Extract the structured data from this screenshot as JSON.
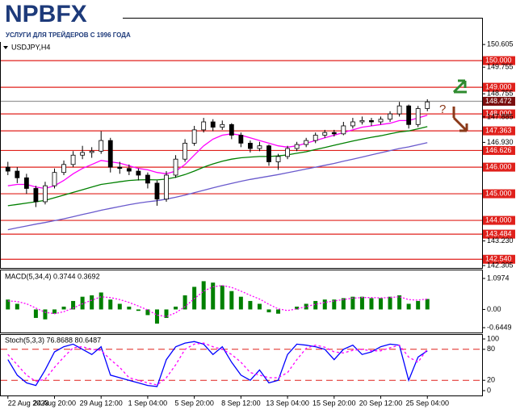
{
  "logo": {
    "name": "NPBFX",
    "tagline": "УСЛУГИ ДЛЯ ТРЕЙДЕРОВ С 1996 ГОДА"
  },
  "chart_data": [
    {
      "type": "candlestick",
      "title": "USDJPY,H4",
      "categories": [
        "22 Aug 2023",
        null,
        null,
        null,
        null,
        "24 Aug 20:00",
        null,
        null,
        null,
        null,
        "29 Aug 12:00",
        null,
        null,
        null,
        null,
        "1 Sep 04:00",
        null,
        null,
        null,
        null,
        "5 Sep 20:00",
        null,
        null,
        null,
        null,
        "8 Sep 12:00",
        null,
        null,
        null,
        null,
        "13 Sep 04:00",
        null,
        null,
        null,
        null,
        "15 Sep 20:00",
        null,
        null,
        null,
        null,
        "20 Sep 12:00",
        null,
        null,
        null,
        null,
        "25 Sep 04:00"
      ],
      "open": [
        146.0,
        145.85,
        145.6,
        145.2,
        144.7,
        145.3,
        145.8,
        146.1,
        146.45,
        146.55,
        146.6,
        147.0,
        146.0,
        145.95,
        145.85,
        145.7,
        145.4,
        144.8,
        145.7,
        146.3,
        146.9,
        147.4,
        147.7,
        147.5,
        147.6,
        147.2,
        146.9,
        146.7,
        146.8,
        146.2,
        146.4,
        146.7,
        146.85,
        147.0,
        147.2,
        147.3,
        147.25,
        147.55,
        147.7,
        147.75,
        147.7,
        147.8,
        148.0,
        148.3,
        147.6,
        148.2
      ],
      "high": [
        146.2,
        146.0,
        145.75,
        145.3,
        145.45,
        145.95,
        146.25,
        146.6,
        146.8,
        146.75,
        147.35,
        147.1,
        146.2,
        146.1,
        145.95,
        145.8,
        145.5,
        145.85,
        146.45,
        147.05,
        147.55,
        147.85,
        147.8,
        147.75,
        147.65,
        147.3,
        147.0,
        146.95,
        146.85,
        146.5,
        146.8,
        146.95,
        147.1,
        147.3,
        147.4,
        147.4,
        147.7,
        147.85,
        147.9,
        147.85,
        147.9,
        148.1,
        148.45,
        148.35,
        148.3,
        148.55
      ],
      "low": [
        145.7,
        145.4,
        145.0,
        144.5,
        144.6,
        145.2,
        145.7,
        146.0,
        146.3,
        146.35,
        146.5,
        145.8,
        145.75,
        145.7,
        145.5,
        145.2,
        144.55,
        144.7,
        145.6,
        146.2,
        146.8,
        147.3,
        147.35,
        147.4,
        147.05,
        146.75,
        146.55,
        146.6,
        146.05,
        145.9,
        146.3,
        146.6,
        146.75,
        146.9,
        147.1,
        147.15,
        147.2,
        147.45,
        147.6,
        147.55,
        147.6,
        147.7,
        147.9,
        147.45,
        147.5,
        148.1
      ],
      "close": [
        145.85,
        145.6,
        145.2,
        144.7,
        145.3,
        145.8,
        146.1,
        146.45,
        146.55,
        146.6,
        147.0,
        146.0,
        145.95,
        145.85,
        145.7,
        145.4,
        144.8,
        145.7,
        146.3,
        146.9,
        147.4,
        147.7,
        147.5,
        147.6,
        147.2,
        146.9,
        146.7,
        146.8,
        146.2,
        146.4,
        146.7,
        146.85,
        147.0,
        147.2,
        147.3,
        147.25,
        147.55,
        147.7,
        147.75,
        147.7,
        147.8,
        148.0,
        148.3,
        147.6,
        148.2,
        148.45
      ],
      "series": [
        {
          "color": "#ff00ff",
          "values": [
            145.3,
            145.35,
            145.35,
            145.25,
            145.2,
            145.3,
            145.5,
            145.75,
            145.95,
            146.1,
            146.25,
            146.2,
            146.15,
            146.05,
            145.95,
            145.9,
            145.8,
            145.75,
            145.85,
            146.1,
            146.45,
            146.8,
            147.05,
            147.2,
            147.25,
            147.2,
            147.1,
            147.0,
            146.9,
            146.8,
            146.75,
            146.8,
            146.9,
            147.0,
            147.1,
            147.2,
            147.3,
            147.4,
            147.5,
            147.55,
            147.6,
            147.65,
            147.75,
            147.75,
            147.85,
            147.95
          ]
        },
        {
          "color": "#008000",
          "values": [
            144.55,
            144.6,
            144.65,
            144.7,
            144.75,
            144.85,
            144.95,
            145.05,
            145.15,
            145.25,
            145.35,
            145.4,
            145.45,
            145.5,
            145.52,
            145.53,
            145.52,
            145.55,
            145.62,
            145.72,
            145.85,
            146.0,
            146.12,
            146.22,
            146.3,
            146.35,
            146.38,
            146.4,
            146.4,
            146.42,
            146.46,
            146.52,
            146.58,
            146.66,
            146.74,
            146.82,
            146.9,
            146.98,
            147.05,
            147.12,
            147.18,
            147.25,
            147.32,
            147.36,
            147.44,
            147.52
          ]
        },
        {
          "color": "#6a5acd",
          "values": [
            143.65,
            143.72,
            143.79,
            143.86,
            143.92,
            143.99,
            144.06,
            144.14,
            144.22,
            144.3,
            144.38,
            144.45,
            144.52,
            144.59,
            144.65,
            144.7,
            144.74,
            144.8,
            144.87,
            144.95,
            145.04,
            145.13,
            145.22,
            145.31,
            145.39,
            145.47,
            145.54,
            145.6,
            145.66,
            145.72,
            145.79,
            145.86,
            145.93,
            146.0,
            146.07,
            146.14,
            146.22,
            146.3,
            146.38,
            146.46,
            146.54,
            146.62,
            146.7,
            146.76,
            146.84,
            146.92
          ]
        }
      ],
      "ylim": [
        142.305,
        151.61
      ],
      "yticks": [
        150.605,
        149.755,
        148.755,
        147.885,
        {
          "value": 146.93,
          "label": "146.930"
        },
        {
          "value": 143.23,
          "label": "143.230"
        },
        142.305
      ],
      "levels": [
        {
          "value": 150,
          "label": "150.000"
        },
        {
          "value": 149,
          "label": "149.000"
        },
        {
          "value": 148.472,
          "label": "148.472"
        },
        {
          "value": 148,
          "label": "148.000"
        },
        {
          "value": 147.363,
          "label": "147.363"
        },
        {
          "value": 146.626,
          "label": "146.626"
        },
        {
          "value": 146,
          "label": "146.000"
        },
        {
          "value": 145,
          "label": "145.000"
        },
        {
          "value": 144,
          "label": "144.000"
        },
        {
          "value": 143.484,
          "label": "143.484"
        },
        {
          "value": 142.54,
          "label": "142.540"
        }
      ],
      "annotations": [
        "?"
      ]
    },
    {
      "type": "bar",
      "title": "MACD(5,34,4) 0.3744 0.3692",
      "color": "#008000",
      "values": [
        0.35,
        0.2,
        0.0,
        -0.3,
        -0.35,
        -0.15,
        0.1,
        0.3,
        0.45,
        0.5,
        0.6,
        0.35,
        0.2,
        0.1,
        -0.05,
        -0.2,
        -0.5,
        -0.3,
        0.1,
        0.5,
        0.8,
        1.0,
        0.95,
        0.85,
        0.65,
        0.45,
        0.3,
        0.2,
        -0.1,
        -0.15,
        0.0,
        0.1,
        0.2,
        0.3,
        0.35,
        0.35,
        0.4,
        0.45,
        0.45,
        0.4,
        0.4,
        0.45,
        0.5,
        0.2,
        0.3,
        0.37
      ],
      "signal": {
        "color": "#ff00ff",
        "values": [
          0.3,
          0.28,
          0.2,
          0.05,
          -0.1,
          -0.15,
          -0.08,
          0.05,
          0.2,
          0.33,
          0.45,
          0.42,
          0.35,
          0.25,
          0.12,
          -0.02,
          -0.2,
          -0.25,
          -0.12,
          0.1,
          0.38,
          0.65,
          0.8,
          0.85,
          0.78,
          0.65,
          0.5,
          0.37,
          0.18,
          0.02,
          -0.04,
          0.02,
          0.1,
          0.18,
          0.25,
          0.3,
          0.35,
          0.4,
          0.42,
          0.42,
          0.41,
          0.42,
          0.45,
          0.35,
          0.33,
          0.37
        ]
      },
      "ylim": [
        -0.6449,
        1.0974
      ],
      "yticks": [
        1.0974,
        {
          "value": 0,
          "label": "0.00"
        },
        -0.6449
      ]
    },
    {
      "type": "line",
      "title": "Stoch(5,3,3) 76.8688 80.6487",
      "series": [
        {
          "color": "#0000ff",
          "values": [
            60,
            30,
            15,
            10,
            40,
            75,
            85,
            90,
            80,
            70,
            85,
            30,
            25,
            20,
            15,
            10,
            8,
            60,
            85,
            92,
            95,
            90,
            70,
            85,
            55,
            30,
            20,
            40,
            15,
            20,
            70,
            90,
            88,
            85,
            80,
            60,
            80,
            88,
            70,
            75,
            85,
            90,
            88,
            20,
            65,
            77
          ]
        },
        {
          "color": "#ff00ff",
          "values": [
            70,
            50,
            30,
            18,
            22,
            45,
            65,
            83,
            85,
            80,
            78,
            60,
            45,
            25,
            20,
            15,
            11,
            25,
            50,
            80,
            90,
            92,
            85,
            80,
            70,
            55,
            35,
            30,
            25,
            25,
            35,
            60,
            82,
            88,
            84,
            75,
            73,
            78,
            80,
            77,
            77,
            83,
            88,
            65,
            55,
            81
          ]
        }
      ],
      "ylim": [
        0,
        100
      ],
      "yticks": [
        100,
        80,
        20,
        0
      ],
      "levels": [
        80,
        20
      ]
    }
  ]
}
